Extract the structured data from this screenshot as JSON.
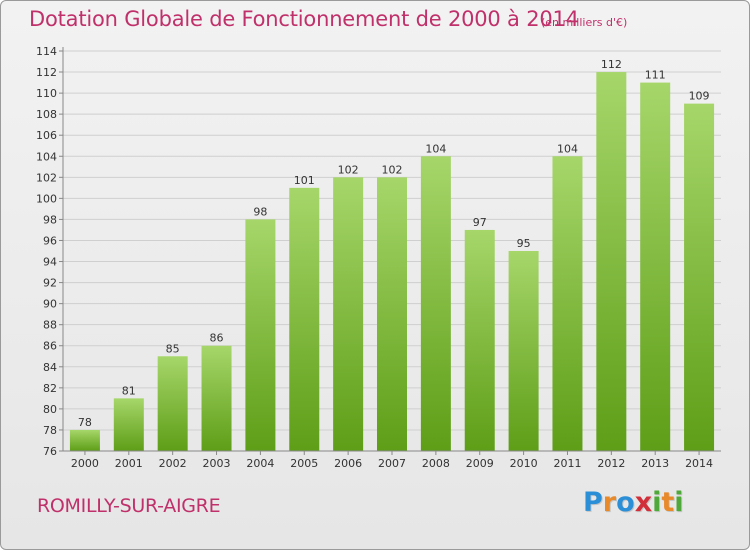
{
  "title": "Dotation Globale de Fonctionnement de 2000 à 2014",
  "subtitle": "(en milliers d'€)",
  "commune": "ROMILLY-SUR-AIGRE",
  "logo": {
    "letters": [
      "P",
      "r",
      "o",
      "x",
      "i",
      "t",
      "i"
    ],
    "colors": [
      "#2a8fd6",
      "#e8892a",
      "#2a8fd6",
      "#d12f3a",
      "#4fa83a",
      "#e8892a",
      "#4fa83a"
    ]
  },
  "colors": {
    "bar_top": "#a6d66a",
    "bar_bottom": "#5e9e17",
    "title": "#c0306a"
  },
  "chart_data": {
    "type": "bar",
    "categories": [
      "2000",
      "2001",
      "2002",
      "2003",
      "2004",
      "2005",
      "2006",
      "2007",
      "2008",
      "2009",
      "2010",
      "2011",
      "2012",
      "2013",
      "2014"
    ],
    "values": [
      78,
      81,
      85,
      86,
      98,
      101,
      102,
      102,
      104,
      97,
      95,
      104,
      112,
      111,
      109
    ],
    "ylim": [
      76,
      114
    ],
    "yticks": [
      76,
      78,
      80,
      82,
      84,
      86,
      88,
      90,
      92,
      94,
      96,
      98,
      100,
      102,
      104,
      106,
      108,
      110,
      112,
      114
    ],
    "xlabel": "",
    "ylabel": "",
    "grid": true
  }
}
